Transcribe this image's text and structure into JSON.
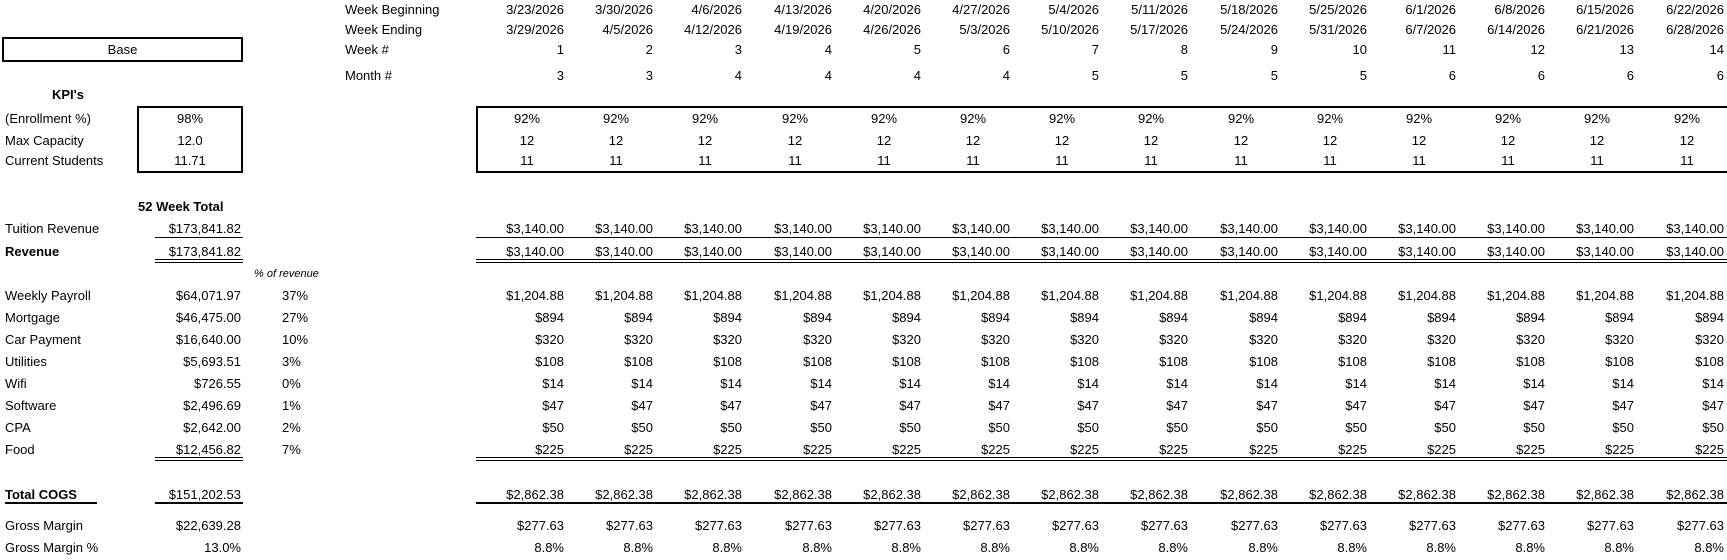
{
  "scenario": {
    "label": "Base"
  },
  "kpi": {
    "heading": "KPI's",
    "rows": [
      {
        "label": "(Enrollment %)",
        "value": "98%"
      },
      {
        "label": "Max Capacity",
        "value": "12.0"
      },
      {
        "label": "Current Students",
        "value": "11.71"
      }
    ]
  },
  "header_labels": {
    "week_beginning": "Week Beginning",
    "week_ending": "Week Ending",
    "week_num": "Week #",
    "month_num": "Month #"
  },
  "total_header": "52 Week Total",
  "pct_header": "% of revenue",
  "weeks": [
    {
      "begin": "3/23/2026",
      "end": "3/29/2026",
      "week": "1",
      "month": "3"
    },
    {
      "begin": "3/30/2026",
      "end": "4/5/2026",
      "week": "2",
      "month": "3"
    },
    {
      "begin": "4/6/2026",
      "end": "4/12/2026",
      "week": "3",
      "month": "4"
    },
    {
      "begin": "4/13/2026",
      "end": "4/19/2026",
      "week": "4",
      "month": "4"
    },
    {
      "begin": "4/20/2026",
      "end": "4/26/2026",
      "week": "5",
      "month": "4"
    },
    {
      "begin": "4/27/2026",
      "end": "5/3/2026",
      "week": "6",
      "month": "4"
    },
    {
      "begin": "5/4/2026",
      "end": "5/10/2026",
      "week": "7",
      "month": "5"
    },
    {
      "begin": "5/11/2026",
      "end": "5/17/2026",
      "week": "8",
      "month": "5"
    },
    {
      "begin": "5/18/2026",
      "end": "5/24/2026",
      "week": "9",
      "month": "5"
    },
    {
      "begin": "5/25/2026",
      "end": "5/31/2026",
      "week": "10",
      "month": "5"
    },
    {
      "begin": "6/1/2026",
      "end": "6/7/2026",
      "week": "11",
      "month": "6"
    },
    {
      "begin": "6/8/2026",
      "end": "6/14/2026",
      "week": "12",
      "month": "6"
    },
    {
      "begin": "6/15/2026",
      "end": "6/21/2026",
      "week": "13",
      "month": "6"
    },
    {
      "begin": "6/22/2026",
      "end": "6/28/2026",
      "week": "14",
      "month": "6"
    }
  ],
  "weekly_kpi": [
    {
      "label": "enrollment",
      "values": [
        "92%",
        "92%",
        "92%",
        "92%",
        "92%",
        "92%",
        "92%",
        "92%",
        "92%",
        "92%",
        "92%",
        "92%",
        "92%",
        "92%"
      ]
    },
    {
      "label": "capacity",
      "values": [
        "12",
        "12",
        "12",
        "12",
        "12",
        "12",
        "12",
        "12",
        "12",
        "12",
        "12",
        "12",
        "12",
        "12"
      ]
    },
    {
      "label": "students",
      "values": [
        "11",
        "11",
        "11",
        "11",
        "11",
        "11",
        "11",
        "11",
        "11",
        "11",
        "11",
        "11",
        "11",
        "11"
      ]
    }
  ],
  "rows": [
    {
      "key": "tuition",
      "label": "Tuition Revenue",
      "total": "$173,841.82",
      "pct": "",
      "bold": false,
      "values": [
        "$3,140.00",
        "$3,140.00",
        "$3,140.00",
        "$3,140.00",
        "$3,140.00",
        "$3,140.00",
        "$3,140.00",
        "$3,140.00",
        "$3,140.00",
        "$3,140.00",
        "$3,140.00",
        "$3,140.00",
        "$3,140.00",
        "$3,140.00"
      ]
    },
    {
      "key": "revenue",
      "label": "Revenue",
      "total": "$173,841.82",
      "pct": "",
      "bold": true,
      "values": [
        "$3,140.00",
        "$3,140.00",
        "$3,140.00",
        "$3,140.00",
        "$3,140.00",
        "$3,140.00",
        "$3,140.00",
        "$3,140.00",
        "$3,140.00",
        "$3,140.00",
        "$3,140.00",
        "$3,140.00",
        "$3,140.00",
        "$3,140.00"
      ]
    },
    {
      "key": "payroll",
      "label": "Weekly Payroll",
      "total": "$64,071.97",
      "pct": "37%",
      "bold": false,
      "values": [
        "$1,204.88",
        "$1,204.88",
        "$1,204.88",
        "$1,204.88",
        "$1,204.88",
        "$1,204.88",
        "$1,204.88",
        "$1,204.88",
        "$1,204.88",
        "$1,204.88",
        "$1,204.88",
        "$1,204.88",
        "$1,204.88",
        "$1,204.88"
      ]
    },
    {
      "key": "mortgage",
      "label": "Mortgage",
      "total": "$46,475.00",
      "pct": "27%",
      "bold": false,
      "values": [
        "$894",
        "$894",
        "$894",
        "$894",
        "$894",
        "$894",
        "$894",
        "$894",
        "$894",
        "$894",
        "$894",
        "$894",
        "$894",
        "$894"
      ]
    },
    {
      "key": "car",
      "label": "Car Payment",
      "total": "$16,640.00",
      "pct": "10%",
      "bold": false,
      "values": [
        "$320",
        "$320",
        "$320",
        "$320",
        "$320",
        "$320",
        "$320",
        "$320",
        "$320",
        "$320",
        "$320",
        "$320",
        "$320",
        "$320"
      ]
    },
    {
      "key": "utilities",
      "label": "Utilities",
      "total": "$5,693.51",
      "pct": "3%",
      "bold": false,
      "values": [
        "$108",
        "$108",
        "$108",
        "$108",
        "$108",
        "$108",
        "$108",
        "$108",
        "$108",
        "$108",
        "$108",
        "$108",
        "$108",
        "$108"
      ]
    },
    {
      "key": "wifi",
      "label": "Wifi",
      "total": "$726.55",
      "pct": "0%",
      "bold": false,
      "values": [
        "$14",
        "$14",
        "$14",
        "$14",
        "$14",
        "$14",
        "$14",
        "$14",
        "$14",
        "$14",
        "$14",
        "$14",
        "$14",
        "$14"
      ]
    },
    {
      "key": "software",
      "label": "Software",
      "total": "$2,496.69",
      "pct": "1%",
      "bold": false,
      "values": [
        "$47",
        "$47",
        "$47",
        "$47",
        "$47",
        "$47",
        "$47",
        "$47",
        "$47",
        "$47",
        "$47",
        "$47",
        "$47",
        "$47"
      ]
    },
    {
      "key": "cpa",
      "label": "CPA",
      "total": "$2,642.00",
      "pct": "2%",
      "bold": false,
      "values": [
        "$50",
        "$50",
        "$50",
        "$50",
        "$50",
        "$50",
        "$50",
        "$50",
        "$50",
        "$50",
        "$50",
        "$50",
        "$50",
        "$50"
      ]
    },
    {
      "key": "food",
      "label": "Food",
      "total": "$12,456.82",
      "pct": "7%",
      "bold": false,
      "values": [
        "$225",
        "$225",
        "$225",
        "$225",
        "$225",
        "$225",
        "$225",
        "$225",
        "$225",
        "$225",
        "$225",
        "$225",
        "$225",
        "$225"
      ]
    },
    {
      "key": "cogs",
      "label": "Total COGS",
      "total": "$151,202.53",
      "pct": "",
      "bold": true,
      "values": [
        "$2,862.38",
        "$2,862.38",
        "$2,862.38",
        "$2,862.38",
        "$2,862.38",
        "$2,862.38",
        "$2,862.38",
        "$2,862.38",
        "$2,862.38",
        "$2,862.38",
        "$2,862.38",
        "$2,862.38",
        "$2,862.38",
        "$2,862.38"
      ]
    },
    {
      "key": "gm",
      "label": "Gross Margin",
      "total": "$22,639.28",
      "pct": "",
      "bold": false,
      "values": [
        "$277.63",
        "$277.63",
        "$277.63",
        "$277.63",
        "$277.63",
        "$277.63",
        "$277.63",
        "$277.63",
        "$277.63",
        "$277.63",
        "$277.63",
        "$277.63",
        "$277.63",
        "$277.63"
      ]
    },
    {
      "key": "gmpct",
      "label": "Gross Margin %",
      "total": "13.0%",
      "pct": "",
      "bold": false,
      "values": [
        "8.8%",
        "8.8%",
        "8.8%",
        "8.8%",
        "8.8%",
        "8.8%",
        "8.8%",
        "8.8%",
        "8.8%",
        "8.8%",
        "8.8%",
        "8.8%",
        "8.8%",
        "8.8%"
      ]
    }
  ]
}
